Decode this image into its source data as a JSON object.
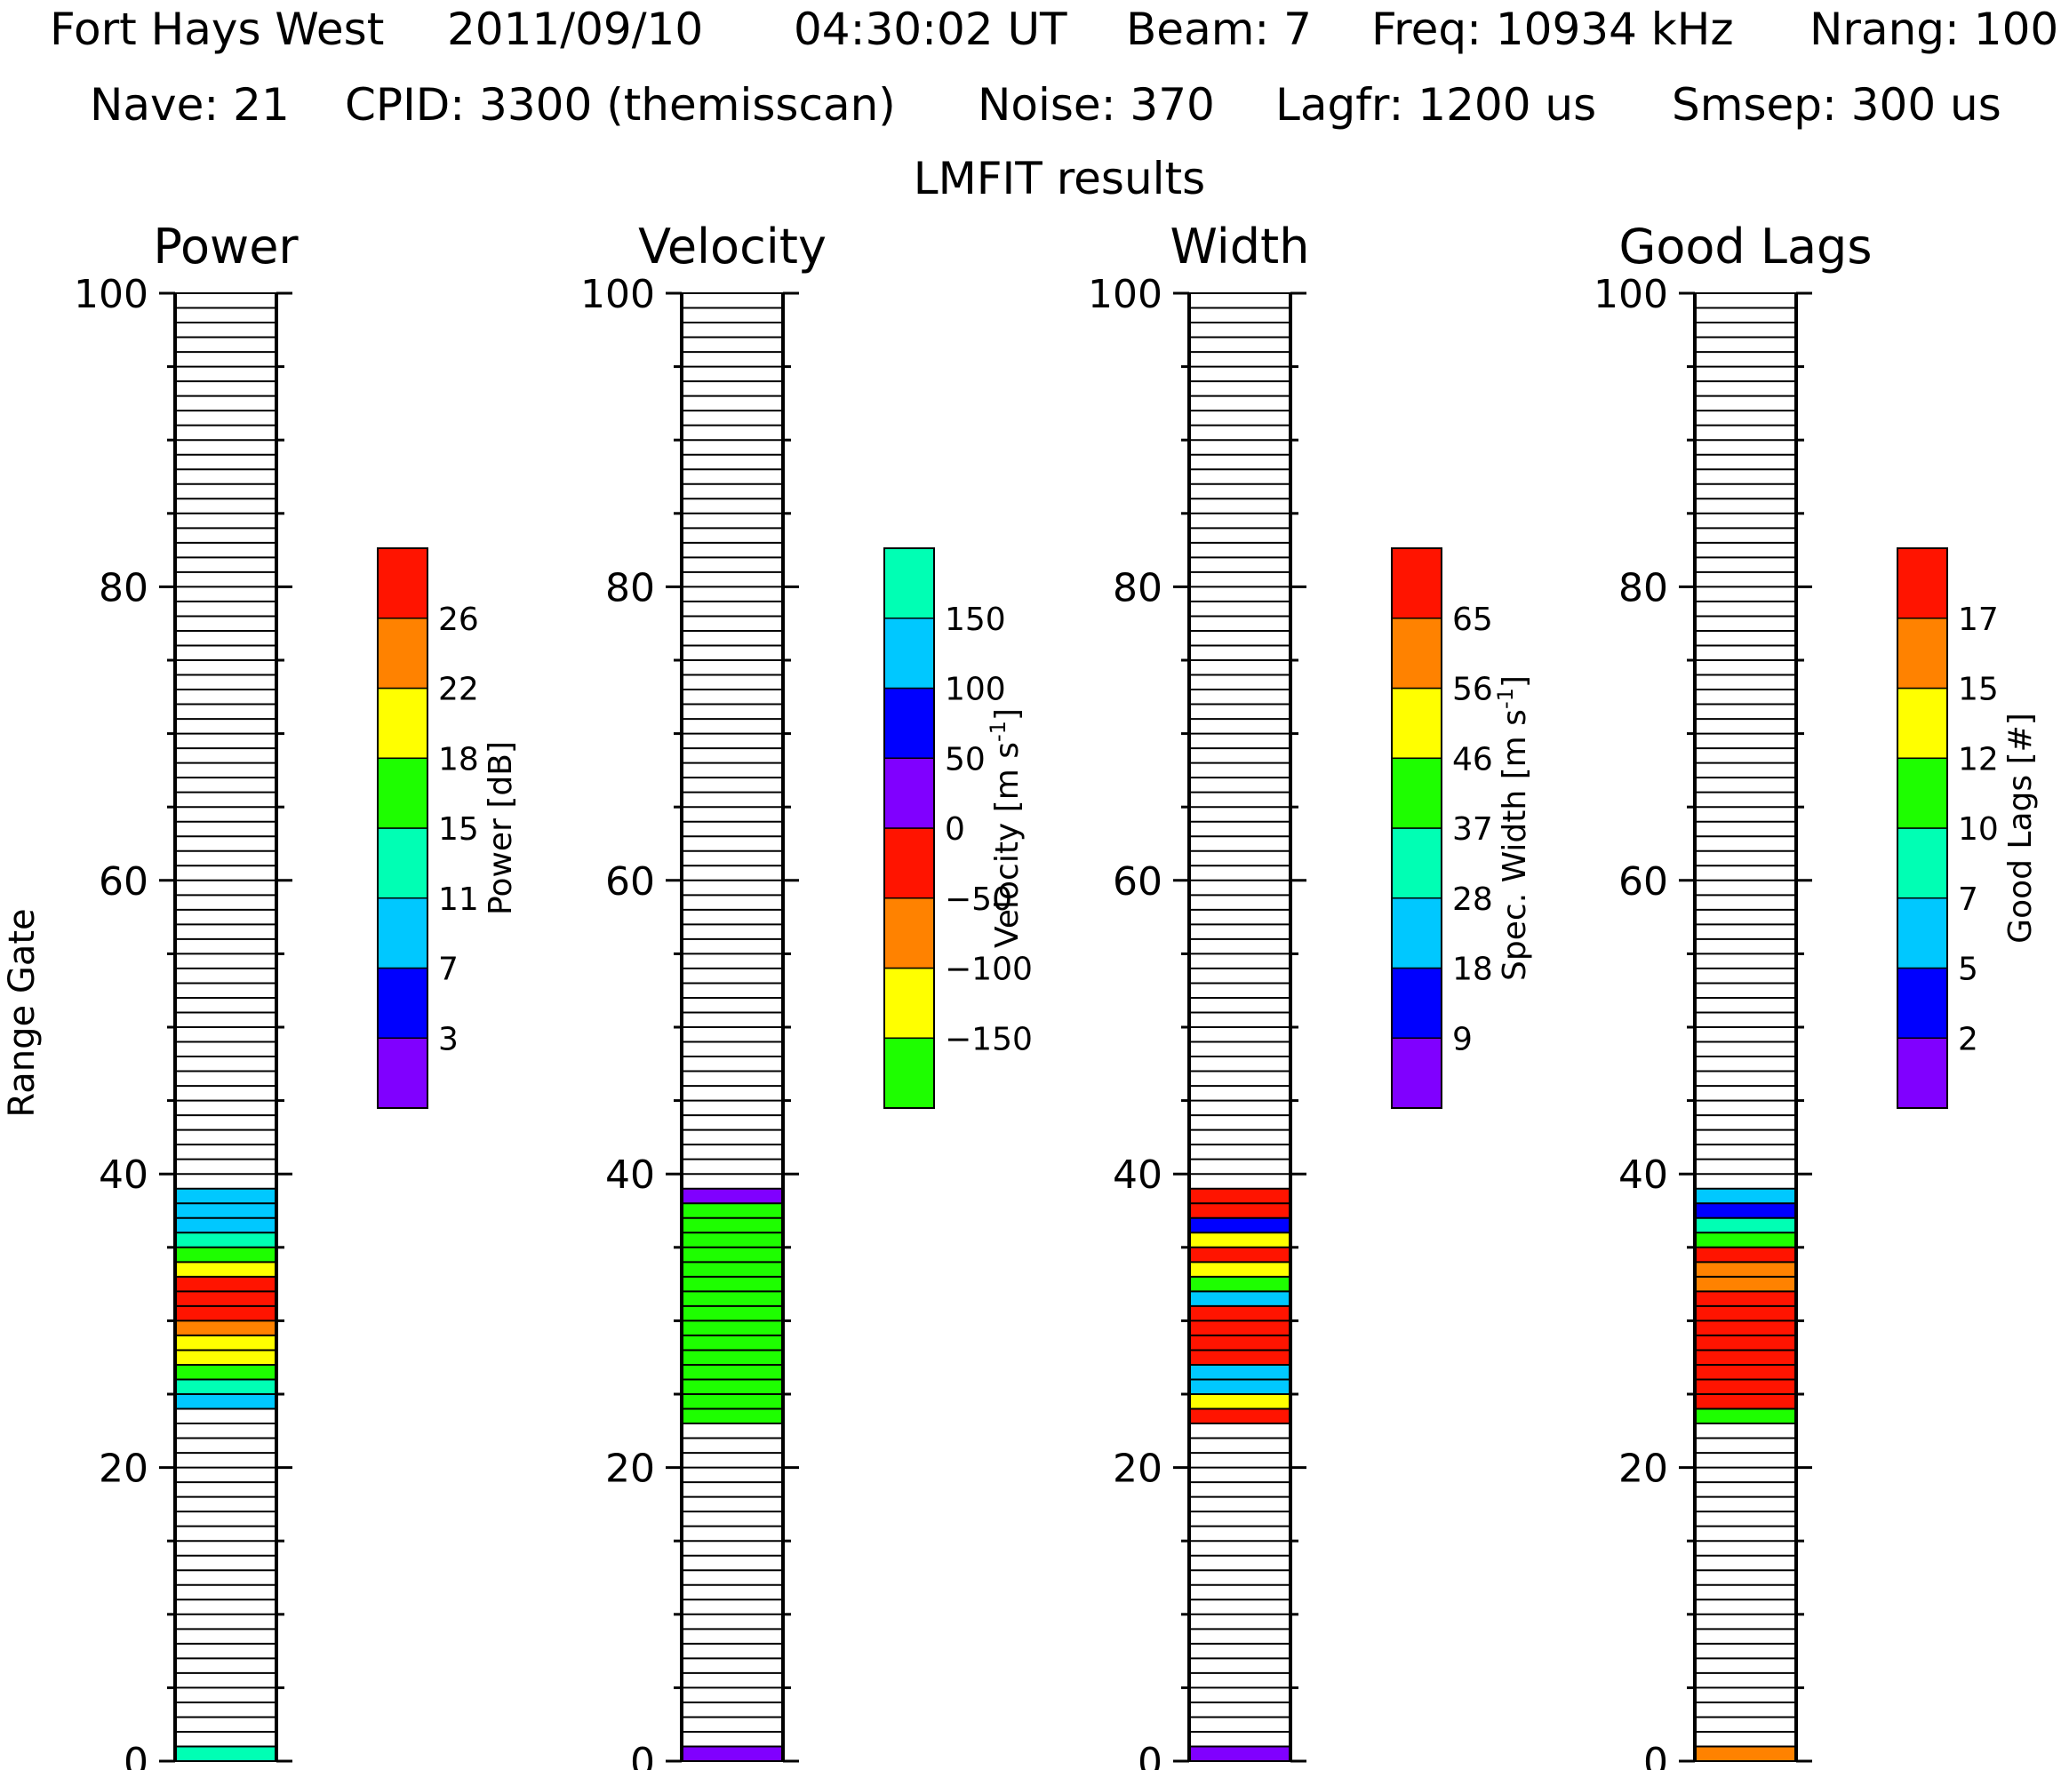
{
  "header": {
    "line1": {
      "station": "Fort Hays West",
      "date": "2011/09/10",
      "time": "04:30:02 UT",
      "beam": "Beam: 7",
      "freq": "Freq: 10934 kHz",
      "nrang": "Nrang: 100"
    },
    "line2": {
      "nave": "Nave: 21",
      "cpid": "CPID: 3300 (themisscan)",
      "noise": "Noise: 370",
      "lagfr": "Lagfr: 1200 us",
      "smsep": "Smsep: 300 us"
    },
    "line3": "LMFIT results"
  },
  "colors": {
    "purple": "#8000ff",
    "blue": "#0000ff",
    "sky": "#00c8ff",
    "aqua": "#00ffb4",
    "green": "#1efe00",
    "yellow": "#ffff00",
    "orange": "#ff8200",
    "red": "#ff1400"
  },
  "chart_data": [
    {
      "type": "heatmap",
      "title": "Power",
      "ylabel": "Range Gate",
      "ylim": [
        0,
        100
      ],
      "yticks": [
        "0",
        "20",
        "40",
        "60",
        "80",
        "100"
      ],
      "colorbar": {
        "label": "Power [dB]",
        "colors": [
          "#8000ff",
          "#0000ff",
          "#00c8ff",
          "#00ffb4",
          "#1efe00",
          "#ffff00",
          "#ff8200",
          "#ff1400"
        ],
        "ticks": [
          "3",
          "7",
          "11",
          "15",
          "18",
          "22",
          "26"
        ]
      },
      "gates": [
        0,
        24,
        25,
        26,
        27,
        28,
        29,
        30,
        31,
        32,
        33,
        34,
        35,
        36,
        37,
        38
      ],
      "colors": [
        "#00ffb4",
        "#00c8ff",
        "#00ffb4",
        "#1efe00",
        "#ffff00",
        "#ffff00",
        "#ff8200",
        "#ff1400",
        "#ff1400",
        "#ff1400",
        "#ffff00",
        "#1efe00",
        "#00ffb4",
        "#00c8ff",
        "#00c8ff",
        "#00c8ff"
      ]
    },
    {
      "type": "heatmap",
      "title": "Velocity",
      "ylim": [
        0,
        100
      ],
      "yticks": [
        "0",
        "20",
        "40",
        "60",
        "80",
        "100"
      ],
      "colorbar": {
        "label": "Velocity [m s",
        "label_sup": "-1",
        "label_end": "]",
        "colors": [
          "#1efe00",
          "#ffff00",
          "#ff8200",
          "#ff1400",
          "#8000ff",
          "#0000ff",
          "#00c8ff",
          "#00ffb4"
        ],
        "ticks": [
          "−150",
          "−100",
          "−50",
          "0",
          "50",
          "100",
          "150"
        ]
      },
      "gates": [
        0,
        23,
        24,
        25,
        26,
        27,
        28,
        29,
        30,
        31,
        32,
        33,
        34,
        35,
        36,
        37,
        38
      ],
      "colors": [
        "#8000ff",
        "#1efe00",
        "#1efe00",
        "#1efe00",
        "#1efe00",
        "#1efe00",
        "#1efe00",
        "#1efe00",
        "#1efe00",
        "#1efe00",
        "#1efe00",
        "#1efe00",
        "#1efe00",
        "#1efe00",
        "#1efe00",
        "#1efe00",
        "#8000ff"
      ]
    },
    {
      "type": "heatmap",
      "title": "Width",
      "ylim": [
        0,
        100
      ],
      "yticks": [
        "0",
        "20",
        "40",
        "60",
        "80",
        "100"
      ],
      "colorbar": {
        "label": "Spec. Width [m s",
        "label_sup": "-1",
        "label_end": "]",
        "colors": [
          "#8000ff",
          "#0000ff",
          "#00c8ff",
          "#00ffb4",
          "#1efe00",
          "#ffff00",
          "#ff8200",
          "#ff1400"
        ],
        "ticks": [
          "9",
          "18",
          "28",
          "37",
          "46",
          "56",
          "65"
        ]
      },
      "gates": [
        0,
        23,
        24,
        25,
        26,
        27,
        28,
        29,
        30,
        31,
        32,
        33,
        34,
        35,
        36,
        37,
        38
      ],
      "colors": [
        "#8000ff",
        "#ff1400",
        "#ffff00",
        "#00c8ff",
        "#00c8ff",
        "#ff1400",
        "#ff1400",
        "#ff1400",
        "#ff1400",
        "#00c8ff",
        "#1efe00",
        "#ffff00",
        "#ff1400",
        "#ffff00",
        "#0000ff",
        "#ff1400",
        "#ff1400"
      ]
    },
    {
      "type": "heatmap",
      "title": "Good Lags",
      "ylim": [
        0,
        100
      ],
      "yticks": [
        "0",
        "20",
        "40",
        "60",
        "80",
        "100"
      ],
      "colorbar": {
        "label": "Good Lags [#]",
        "colors": [
          "#8000ff",
          "#0000ff",
          "#00c8ff",
          "#00ffb4",
          "#1efe00",
          "#ffff00",
          "#ff8200",
          "#ff1400"
        ],
        "ticks": [
          "2",
          "5",
          "7",
          "10",
          "12",
          "15",
          "17"
        ]
      },
      "gates": [
        0,
        23,
        24,
        25,
        26,
        27,
        28,
        29,
        30,
        31,
        32,
        33,
        34,
        35,
        36,
        37,
        38
      ],
      "colors": [
        "#ff8200",
        "#1efe00",
        "#ff1400",
        "#ff1400",
        "#ff1400",
        "#ff1400",
        "#ff1400",
        "#ff1400",
        "#ff1400",
        "#ff1400",
        "#ff8200",
        "#ff8200",
        "#ff1400",
        "#1efe00",
        "#00ffb4",
        "#0000ff",
        "#00c8ff"
      ]
    }
  ]
}
